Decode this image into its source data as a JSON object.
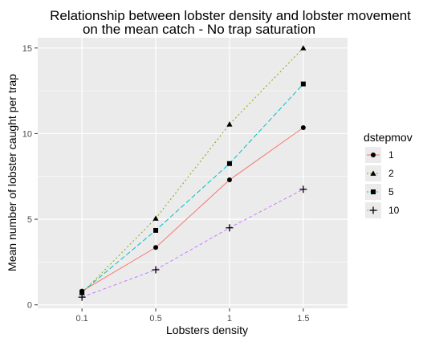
{
  "chart_data": {
    "type": "line",
    "title_line1": "Relationship between lobster density and lobster movement",
    "title_line2": "on the mean catch - No trap saturation",
    "xlabel": "Lobsters density",
    "ylabel": "Mean number of lobster caught per trap",
    "categories": [
      "0.1",
      "0.5",
      "1",
      "1.5"
    ],
    "yticks": [
      0,
      5,
      10,
      15
    ],
    "ylim": [
      -0.2,
      15.6
    ],
    "grid": true,
    "legend_title": "dstepmov",
    "legend_position": "right",
    "series": [
      {
        "name": "1",
        "color": "#F8766D",
        "dash": "",
        "marker": "circle",
        "values": [
          0.8,
          3.35,
          7.3,
          10.35
        ]
      },
      {
        "name": "2",
        "color": "#7CAE00",
        "dash": "2,3",
        "marker": "triangle",
        "values": [
          0.7,
          5.05,
          10.55,
          15.0
        ]
      },
      {
        "name": "5",
        "color": "#00BFC4",
        "dash": "6,3",
        "marker": "square",
        "values": [
          0.75,
          4.35,
          8.25,
          12.9
        ]
      },
      {
        "name": "10",
        "color": "#C77CFF",
        "dash": "4,3",
        "marker": "plus",
        "values": [
          0.45,
          2.05,
          4.5,
          6.75
        ]
      }
    ]
  }
}
